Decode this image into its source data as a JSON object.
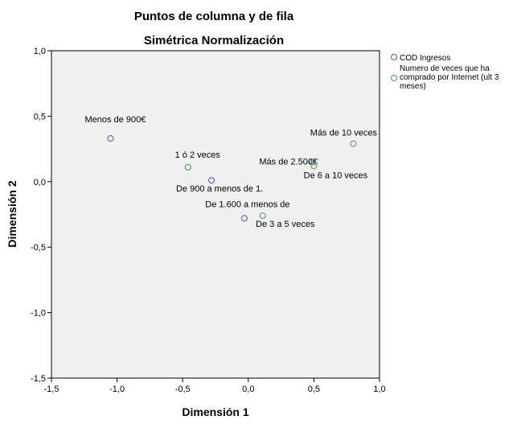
{
  "chart_data": {
    "type": "scatter",
    "title": "Puntos de columna y de fila",
    "subtitle": "Simétrica Normalización",
    "xlabel": "Dimensión 1",
    "ylabel": "Dimensión 2",
    "xlim": [
      -1.5,
      1.0
    ],
    "ylim": [
      -1.5,
      1.0
    ],
    "xticks": [
      -1.5,
      -1.0,
      -0.5,
      0.0,
      0.5,
      1.0
    ],
    "yticks": [
      -1.5,
      -1.0,
      -0.5,
      0.0,
      0.5,
      1.0
    ],
    "xtick_labels": [
      "-1,5",
      "-1,0",
      "-0,5",
      "0,0",
      "0,5",
      "1,0"
    ],
    "ytick_labels": [
      "-1,5",
      "-1,0",
      "-0,5",
      "0,0",
      "0,5",
      "1,0"
    ],
    "grid": false,
    "plot_background": "#f0f0f0",
    "legend_position": "right",
    "series": [
      {
        "name": "COD Ingresos",
        "color": "#5b7fc6",
        "points": [
          {
            "x": -1.05,
            "y": 0.33,
            "label": "Menos de 900€"
          },
          {
            "x": -0.28,
            "y": 0.01,
            "label": "De 900 a menos de 1."
          },
          {
            "x": -0.03,
            "y": -0.28,
            "label": "De 1.600 a menos de"
          },
          {
            "x": 0.49,
            "y": 0.15,
            "label": "Más de 2.500€"
          }
        ]
      },
      {
        "name": "Numero de veces que ha comprado por Internet (ult 3 meses)",
        "legend_lines": [
          "Numero de veces que ha",
          "comprado por Internet (ult 3",
          "meses)"
        ],
        "color": "#5cb85c",
        "points": [
          {
            "x": -0.46,
            "y": 0.11,
            "label": "1 ó 2 veces"
          },
          {
            "x": 0.11,
            "y": -0.26,
            "label": "De 3 a 5 veces"
          },
          {
            "x": 0.5,
            "y": 0.12,
            "label": "De 6 a 10 veces"
          },
          {
            "x": 0.8,
            "y": 0.29,
            "label": "Más de 10 veces"
          }
        ]
      }
    ]
  }
}
